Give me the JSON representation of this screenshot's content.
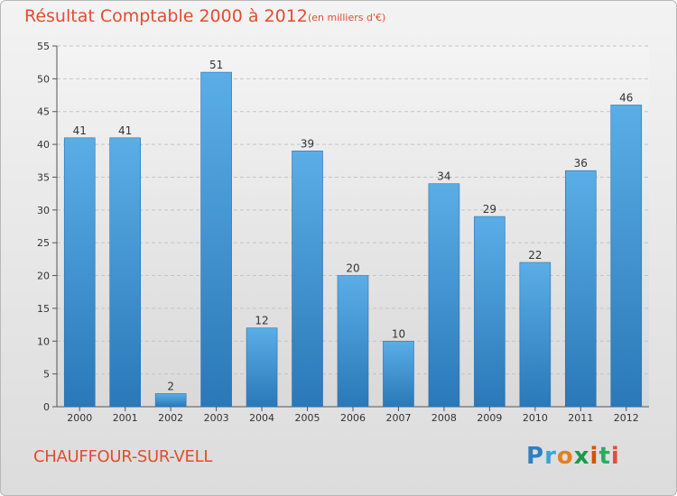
{
  "chart_data": {
    "type": "bar",
    "title": "Résultat Comptable 2000 à 2012",
    "subtitle": "(en milliers d'€)",
    "categories": [
      "2000",
      "2001",
      "2002",
      "2003",
      "2004",
      "2005",
      "2006",
      "2007",
      "2008",
      "2009",
      "2010",
      "2011",
      "2012"
    ],
    "values": [
      41,
      41,
      2,
      51,
      12,
      39,
      20,
      10,
      34,
      29,
      22,
      36,
      46
    ],
    "ylim": [
      0,
      55
    ],
    "yticks": [
      0,
      5,
      10,
      15,
      20,
      25,
      30,
      35,
      40,
      45,
      50,
      55
    ],
    "xlabel": "",
    "ylabel": "",
    "grid": true,
    "bar_color": "#3d8fd0"
  },
  "footer": {
    "commune": "CHAUFFOUR-SUR-VELL",
    "logo_letters": [
      "P",
      "r",
      "o",
      "x",
      "i",
      "t",
      "i"
    ],
    "logo_colors": [
      "#2f7fc1",
      "#3aa3d6",
      "#e67e22",
      "#1a9a48",
      "#d35400",
      "#27ae60",
      "#e74c3c"
    ]
  }
}
